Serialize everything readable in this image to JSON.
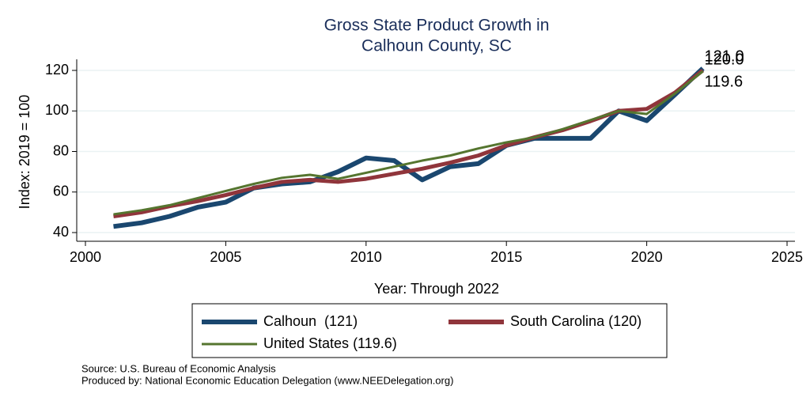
{
  "chart_data": {
    "type": "line",
    "title": [
      "Gross State Product Growth in",
      "Calhoun County, SC"
    ],
    "x_label": "Year: Through 2022",
    "y_label": "Index: 2019 = 100",
    "x": [
      2001,
      2002,
      2003,
      2004,
      2005,
      2006,
      2007,
      2008,
      2009,
      2010,
      2011,
      2012,
      2013,
      2014,
      2015,
      2016,
      2017,
      2018,
      2019,
      2020,
      2021,
      2022
    ],
    "series": [
      {
        "name": "Calhoun  (121)",
        "color": "#1a476f",
        "values": [
          43,
          44.8,
          48,
          52.5,
          55,
          62,
          64,
          65,
          70,
          76.8,
          75.5,
          66,
          72.5,
          74,
          83,
          86.5,
          86.5,
          86.5,
          100,
          95.2,
          108,
          121
        ],
        "end_label": "121.0"
      },
      {
        "name": "South Carolina (120)",
        "color": "#90353b",
        "values": [
          48,
          50,
          53,
          55.5,
          58.5,
          62,
          65,
          66,
          65,
          66.5,
          69,
          71.5,
          74.5,
          78,
          83,
          87,
          90.5,
          95,
          100,
          101,
          109,
          120
        ],
        "end_label": "120.0"
      },
      {
        "name": "United States (119.6)",
        "color": "#55752f",
        "values": [
          49,
          51,
          53.5,
          57,
          60.5,
          64,
          67,
          68.5,
          66.5,
          69.5,
          72.5,
          75.5,
          78,
          81.5,
          84.5,
          87,
          91,
          95.5,
          100,
          98.5,
          108.5,
          119.6
        ],
        "end_label": "119.6"
      }
    ],
    "xlim": [
      2000,
      2025
    ],
    "xticks": [
      2000,
      2005,
      2010,
      2015,
      2020,
      2025
    ],
    "ylim": [
      40,
      120
    ],
    "yticks": [
      40,
      60,
      80,
      100,
      120
    ],
    "grid": true,
    "notes": [
      "Source: U.S. Bureau of Economic Analysis",
      "Produced by: National Economic Education Delegation (www.NEEDelegation.org)"
    ]
  }
}
